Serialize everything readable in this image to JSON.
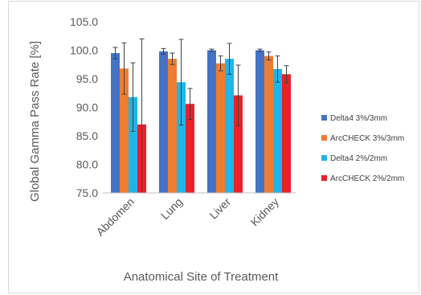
{
  "chart_data": {
    "type": "bar",
    "xlabel": "Anatomical Site of Treatment",
    "ylabel": "Global Gamma Pass Rate [%]",
    "ylim": [
      75.0,
      105.0
    ],
    "yticks": [
      "105.0",
      "100.0",
      "95.0",
      "90.0",
      "85.0",
      "80.0",
      "75.0"
    ],
    "categories": [
      "Abdomen",
      "Lung",
      "Liver",
      "Kidney"
    ],
    "legend_position": "right",
    "grid": false,
    "series": [
      {
        "name": "Delta4 3%/3mm",
        "color": "#4472c4",
        "values": [
          99.5,
          99.8,
          100.0,
          100.0
        ],
        "err": [
          1.0,
          0.5,
          0.2,
          0.2
        ]
      },
      {
        "name": "ArcCHECK 3%/3mm",
        "color": "#ed7d31",
        "values": [
          96.8,
          98.5,
          97.7,
          99.0
        ],
        "err": [
          4.5,
          1.0,
          1.3,
          0.7
        ]
      },
      {
        "name": "Delta4 2%/2mm",
        "color": "#21b4e8",
        "values": [
          91.8,
          94.4,
          98.5,
          96.7
        ],
        "err": [
          6.0,
          7.5,
          2.7,
          2.3
        ]
      },
      {
        "name": "ArcCHECK 2%/2mm",
        "color": "#e8212b",
        "values": [
          87.0,
          90.6,
          92.1,
          95.8
        ],
        "err": [
          15.0,
          2.7,
          5.3,
          1.5
        ]
      }
    ]
  }
}
